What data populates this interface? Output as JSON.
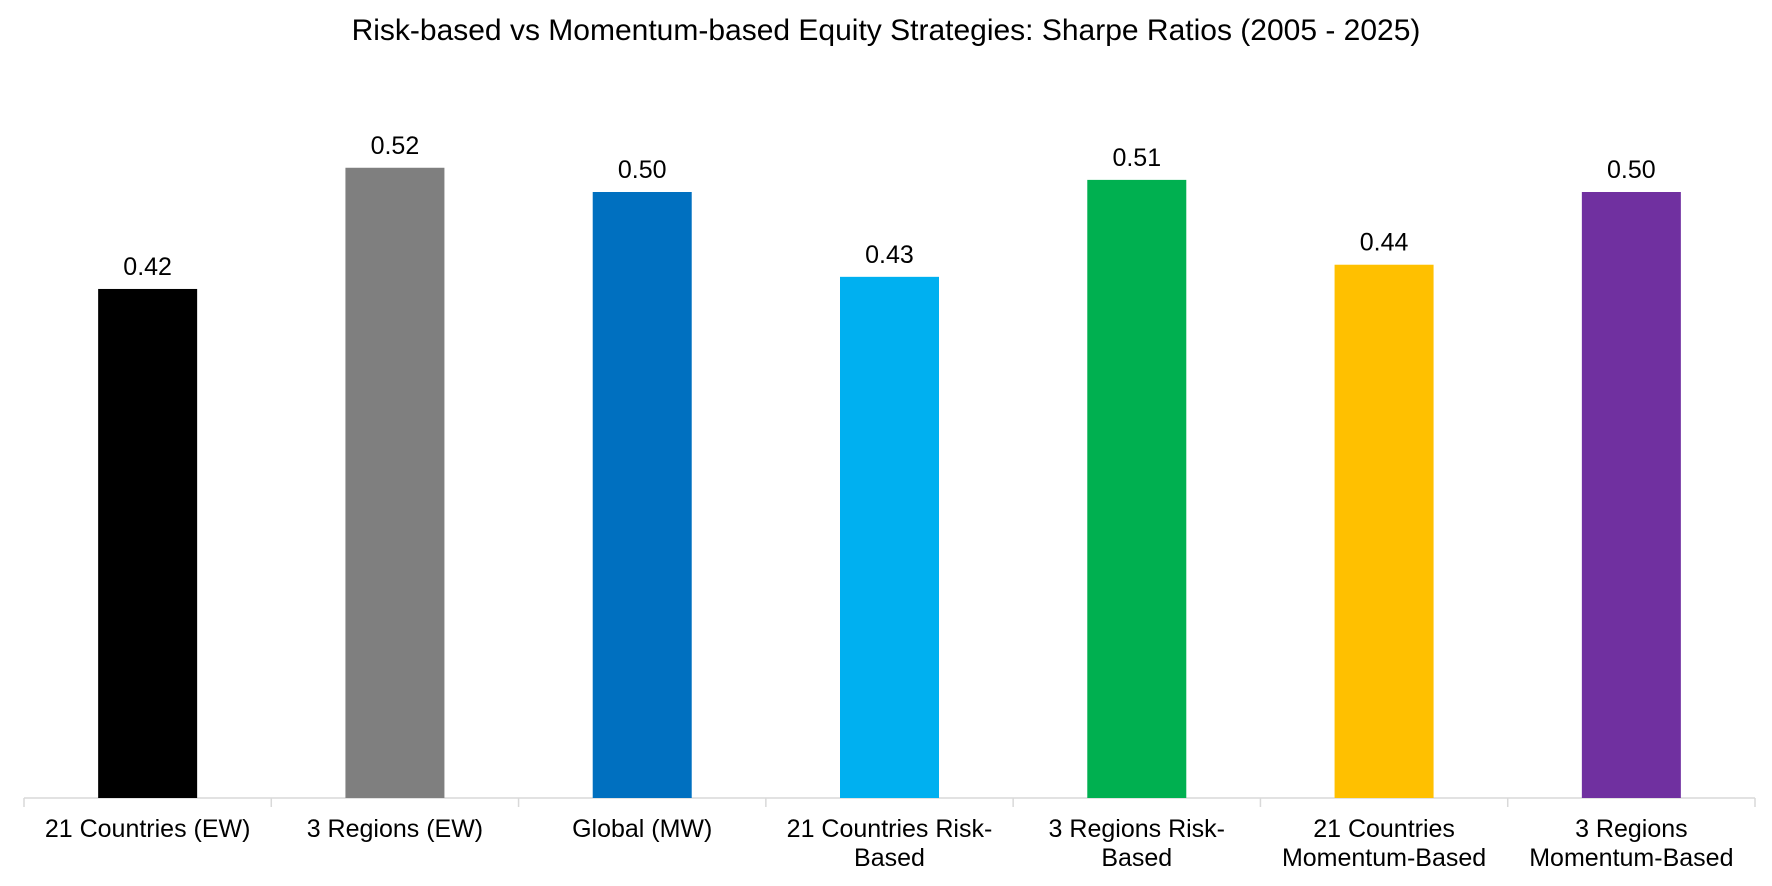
{
  "chart_data": {
    "type": "bar",
    "title": "Risk-based vs Momentum-based Equity Strategies: Sharpe Ratios (2005 - 2025)",
    "xlabel": "",
    "ylabel": "",
    "ylim": [
      0,
      0.6
    ],
    "grid": false,
    "legend": "none",
    "categories": [
      [
        "21 Countries (EW)"
      ],
      [
        "3 Regions (EW)"
      ],
      [
        "Global (MW)"
      ],
      [
        "21 Countries Risk-",
        "Based"
      ],
      [
        "3 Regions Risk-",
        "Based"
      ],
      [
        "21 Countries",
        "Momentum-Based"
      ],
      [
        "3 Regions",
        "Momentum-Based"
      ]
    ],
    "values": [
      0.42,
      0.52,
      0.5,
      0.43,
      0.51,
      0.44,
      0.5
    ],
    "value_labels": [
      "0.42",
      "0.52",
      "0.50",
      "0.43",
      "0.51",
      "0.44",
      "0.50"
    ],
    "colors": [
      "#000000",
      "#7f7f7f",
      "#0070c0",
      "#00b0f0",
      "#00b050",
      "#ffc000",
      "#7030a0"
    ],
    "axis_color": "#d9d9d9"
  }
}
